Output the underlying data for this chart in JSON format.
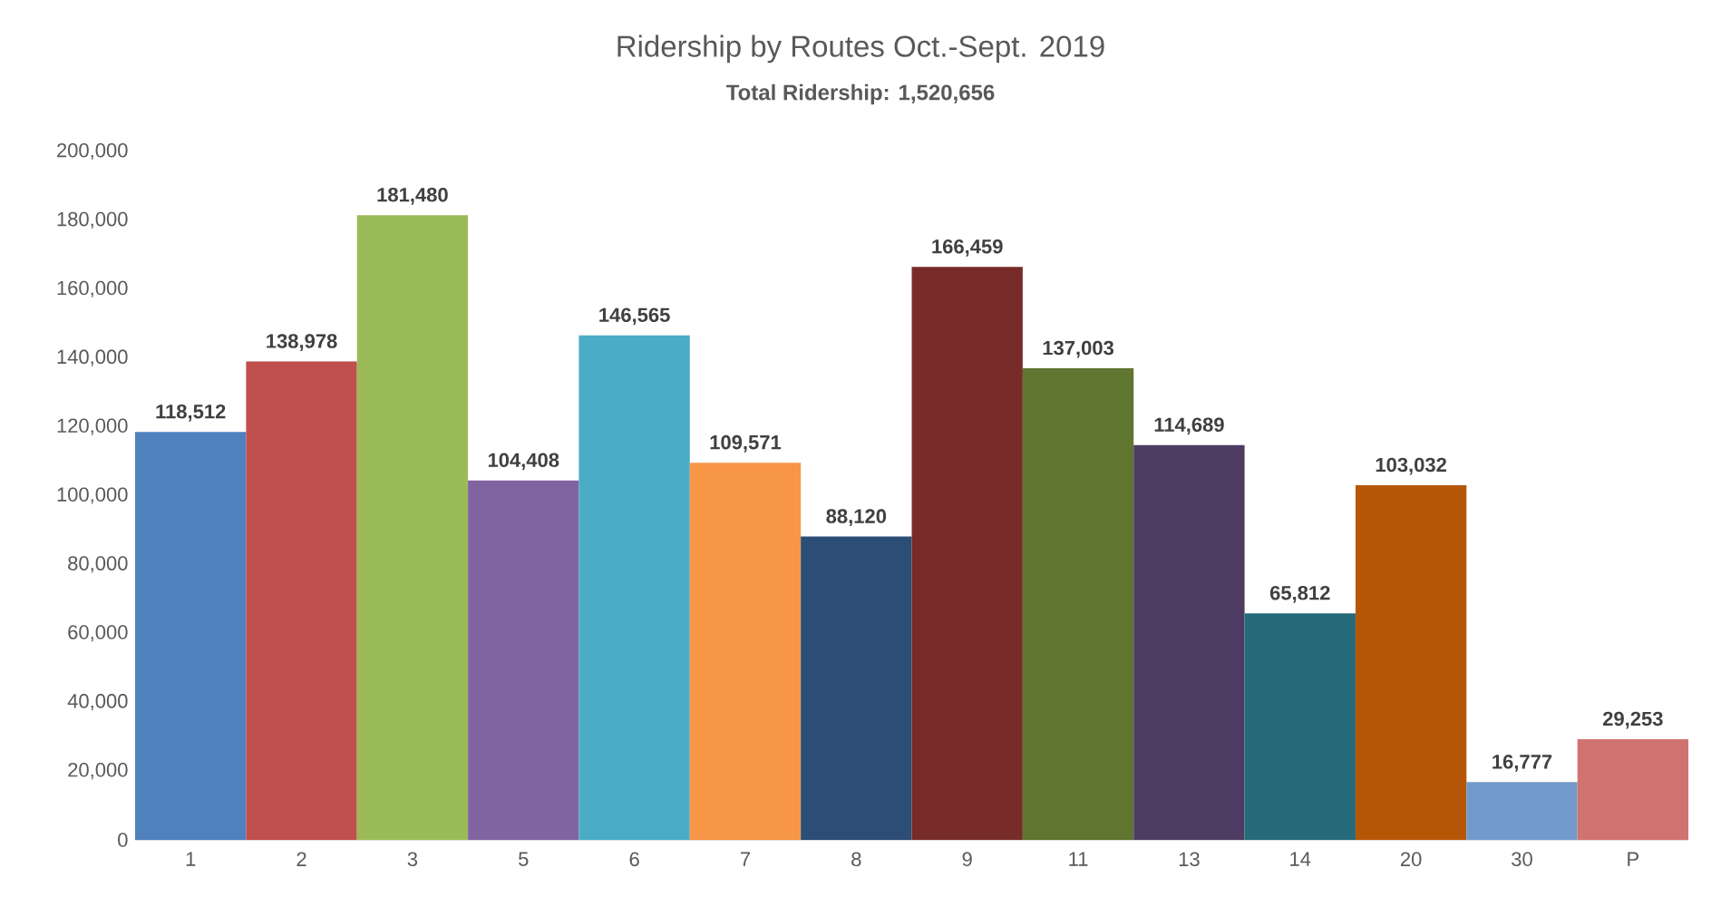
{
  "chart_data": {
    "type": "bar",
    "title": "Ridership by Routes Oct.-Sept. 2019",
    "subtitle": "**Total Ridership: 1,520,656**",
    "categories": [
      "1",
      "2",
      "3",
      "5",
      "6",
      "7",
      "8",
      "9",
      "11",
      "13",
      "14",
      "20",
      "30",
      "P"
    ],
    "values": [
      118512,
      138978,
      181480,
      104408,
      146565,
      109571,
      88120,
      166459,
      137003,
      114689,
      65812,
      103032,
      16777,
      29253
    ],
    "value_labels": [
      "118,512",
      "138,978",
      "181,480",
      "104,408",
      "146,565",
      "109,571",
      "88,120",
      "166,459",
      "137,003",
      "114,689",
      "65,812",
      "103,032",
      "16,777",
      "29,253"
    ],
    "colors": [
      "#4f81bd",
      "#c0504d",
      "#9bbb59",
      "#8064a2",
      "#4bacc6",
      "#f79646",
      "#2c4d75",
      "#772c2a",
      "#5f7530",
      "#4d3b62",
      "#276a7c",
      "#b65708",
      "#729aca",
      "#d07370"
    ],
    "ylim": [
      0,
      200000
    ],
    "yticks": [
      {
        "value": 0,
        "label": "0"
      },
      {
        "value": 20000,
        "label": "20,000"
      },
      {
        "value": 40000,
        "label": "40,000"
      },
      {
        "value": 60000,
        "label": "60,000"
      },
      {
        "value": 80000,
        "label": "80,000"
      },
      {
        "value": 100000,
        "label": "100,000"
      },
      {
        "value": 120000,
        "label": "120,000"
      },
      {
        "value": 140000,
        "label": "140,000"
      },
      {
        "value": 160000,
        "label": "160,000"
      },
      {
        "value": 180000,
        "label": "180,000"
      },
      {
        "value": 200000,
        "label": "200,000"
      }
    ]
  }
}
